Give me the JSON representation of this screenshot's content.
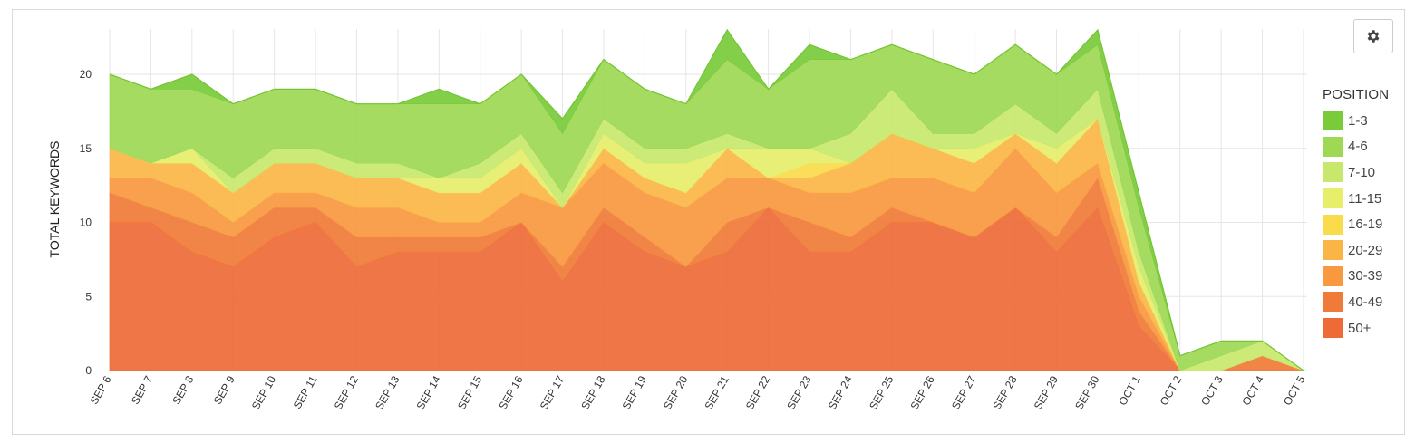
{
  "settings_button": {
    "icon": "gear-icon"
  },
  "legend": {
    "title": "POSITION",
    "items": [
      {
        "label": "1-3",
        "color": "#7acb3a"
      },
      {
        "label": "4-6",
        "color": "#9ed854"
      },
      {
        "label": "7-10",
        "color": "#c7e86c"
      },
      {
        "label": "11-15",
        "color": "#e6ee6a"
      },
      {
        "label": "16-19",
        "color": "#fadb4c"
      },
      {
        "label": "20-29",
        "color": "#fbb546"
      },
      {
        "label": "30-39",
        "color": "#f8983f"
      },
      {
        "label": "40-49",
        "color": "#f07b38"
      },
      {
        "label": "50+",
        "color": "#ee6a36"
      }
    ]
  },
  "chart_data": {
    "type": "area",
    "stacked": true,
    "ylabel": "TOTAL KEYWORDS",
    "xlabel": "",
    "ylim": [
      0,
      23
    ],
    "yticks": [
      0,
      5,
      10,
      15,
      20
    ],
    "grid": true,
    "legend_position": "right",
    "categories": [
      "SEP 6",
      "SEP 7",
      "SEP 8",
      "SEP 9",
      "SEP 10",
      "SEP 11",
      "SEP 12",
      "SEP 13",
      "SEP 14",
      "SEP 15",
      "SEP 16",
      "SEP 17",
      "SEP 18",
      "SEP 19",
      "SEP 20",
      "SEP 21",
      "SEP 22",
      "SEP 23",
      "SEP 24",
      "SEP 25",
      "SEP 26",
      "SEP 27",
      "SEP 28",
      "SEP 29",
      "SEP 30",
      "OCT 1",
      "OCT 2",
      "OCT 3",
      "OCT 4",
      "OCT 5"
    ],
    "series": [
      {
        "name": "50+",
        "values": [
          10,
          10,
          8,
          7,
          9,
          10,
          7,
          8,
          8,
          8,
          10,
          6,
          10,
          8,
          7,
          8,
          11,
          8,
          8,
          10,
          10,
          9,
          11,
          8,
          11,
          3,
          0,
          0,
          0,
          0
        ]
      },
      {
        "name": "40-49",
        "values": [
          2,
          1,
          2,
          2,
          2,
          1,
          2,
          1,
          1,
          1,
          0,
          1,
          1,
          1,
          0,
          2,
          0,
          2,
          1,
          1,
          0,
          0,
          0,
          1,
          2,
          1,
          0,
          0,
          1,
          0
        ]
      },
      {
        "name": "30-39",
        "values": [
          1,
          2,
          2,
          1,
          1,
          1,
          2,
          2,
          1,
          1,
          2,
          4,
          3,
          3,
          4,
          3,
          2,
          2,
          3,
          2,
          3,
          3,
          4,
          3,
          1,
          1,
          0,
          0,
          0,
          0
        ]
      },
      {
        "name": "20-29",
        "values": [
          2,
          1,
          2,
          2,
          2,
          2,
          2,
          2,
          2,
          2,
          2,
          0,
          1,
          1,
          1,
          2,
          0,
          1,
          2,
          3,
          2,
          2,
          1,
          2,
          3,
          1,
          0,
          0,
          0,
          0
        ]
      },
      {
        "name": "16-19",
        "values": [
          0,
          0,
          0,
          0,
          0,
          0,
          0,
          0,
          0,
          0,
          0,
          0,
          0,
          0,
          0,
          0,
          0,
          1,
          0,
          0,
          0,
          0,
          0,
          0,
          0,
          0,
          0,
          0,
          0,
          0
        ]
      },
      {
        "name": "11-15",
        "values": [
          0,
          0,
          1,
          0,
          0,
          0,
          0,
          0,
          1,
          1,
          1,
          0,
          1,
          1,
          2,
          0,
          2,
          1,
          0,
          0,
          0,
          1,
          0,
          1,
          0,
          1,
          0,
          0,
          0,
          0
        ]
      },
      {
        "name": "7-10",
        "values": [
          0,
          0,
          0,
          1,
          1,
          1,
          1,
          1,
          0,
          1,
          1,
          1,
          1,
          1,
          1,
          1,
          0,
          0,
          2,
          3,
          1,
          1,
          2,
          1,
          2,
          1,
          0,
          1,
          1,
          0
        ]
      },
      {
        "name": "4-6",
        "values": [
          5,
          5,
          4,
          5,
          4,
          4,
          4,
          4,
          5,
          4,
          4,
          4,
          4,
          4,
          3,
          5,
          4,
          6,
          5,
          3,
          5,
          4,
          4,
          4,
          3,
          3,
          1,
          1,
          0,
          0
        ]
      },
      {
        "name": "1-3",
        "values": [
          0,
          0,
          1,
          0,
          0,
          0,
          0,
          0,
          1,
          0,
          0,
          1,
          0,
          0,
          0,
          2,
          0,
          1,
          0,
          0,
          0,
          0,
          0,
          0,
          1,
          1,
          0,
          0,
          0,
          0
        ]
      }
    ]
  }
}
